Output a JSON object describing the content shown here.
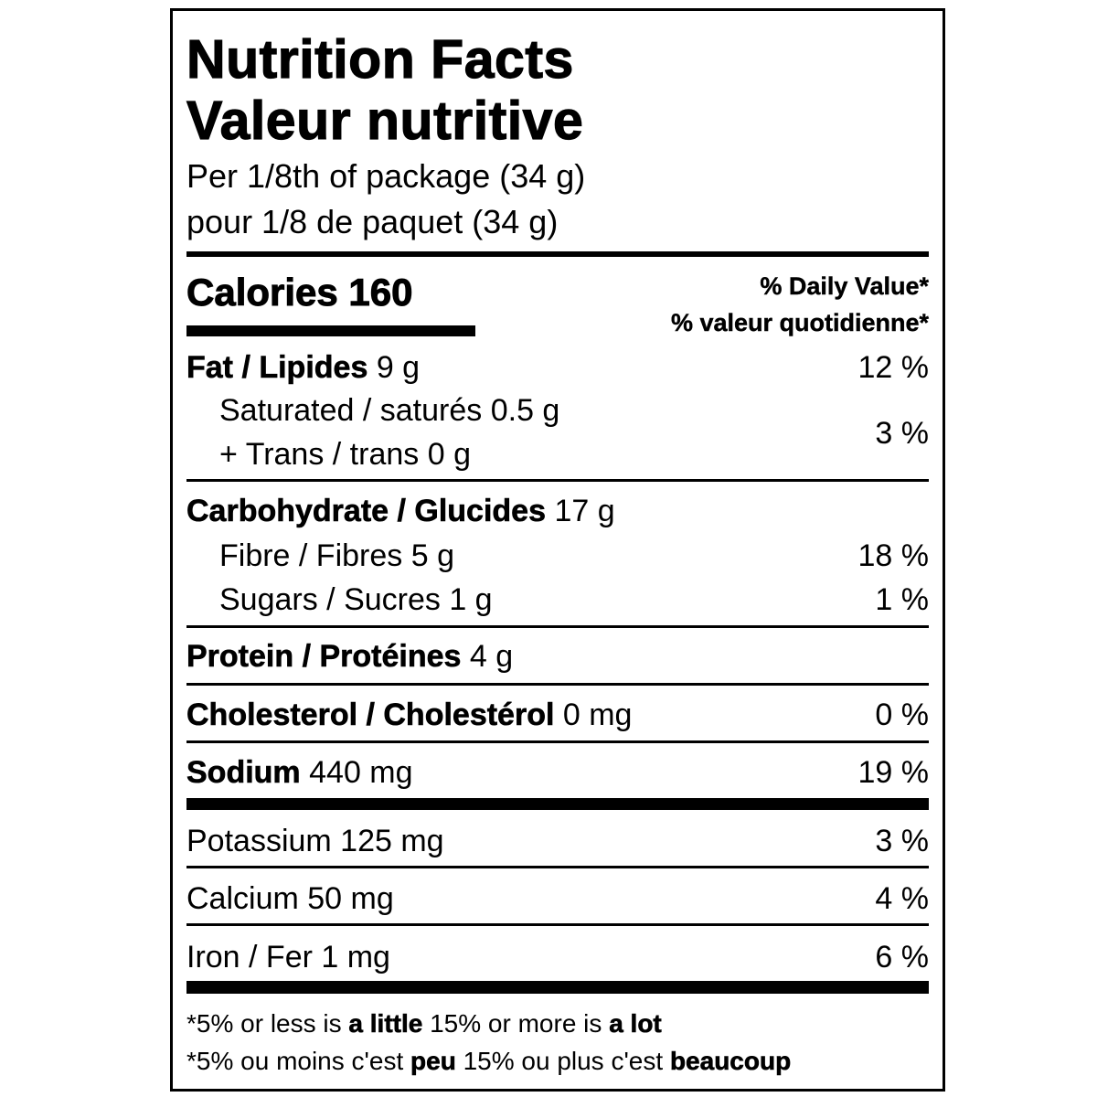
{
  "title_en": "Nutrition Facts",
  "title_fr": "Valeur nutritive",
  "serving_en": "Per 1/8th of package (34 g)",
  "serving_fr": "pour 1/8 de paquet (34 g)",
  "calories_label": "Calories 160",
  "dv_en": "% Daily Value*",
  "dv_fr": "% valeur quotidienne*",
  "nutrients": {
    "fat": {
      "label": "Fat / Lipides",
      "amount": "9 g",
      "dv": "12 %"
    },
    "saturated": {
      "label": "Saturated / saturés 0.5 g"
    },
    "trans": {
      "label": "+ Trans / trans 0 g"
    },
    "sat_trans_dv": "3 %",
    "carb": {
      "label": "Carbohydrate / Glucides",
      "amount": "17 g"
    },
    "fibre": {
      "label": "Fibre / Fibres 5 g",
      "dv": "18 %"
    },
    "sugars": {
      "label": "Sugars / Sucres 1 g",
      "dv": "1 %"
    },
    "protein": {
      "label": "Protein / Protéines",
      "amount": "4 g"
    },
    "cholesterol": {
      "label": "Cholesterol / Cholestérol",
      "amount": "0 mg",
      "dv": "0 %"
    },
    "sodium": {
      "label": "Sodium",
      "amount": "440 mg",
      "dv": "19 %"
    },
    "potassium": {
      "label": "Potassium 125 mg",
      "dv": "3 %"
    },
    "calcium": {
      "label": "Calcium 50 mg",
      "dv": "4 %"
    },
    "iron": {
      "label": "Iron / Fer 1 mg",
      "dv": "6 %"
    }
  },
  "footnote_en": {
    "a": "*5% or less is ",
    "b": "a little",
    "c": " 15% or more is ",
    "d": "a lot"
  },
  "footnote_fr": {
    "a": "*5% ou moins c'est ",
    "b": "peu",
    "c": " 15% ou plus c'est ",
    "d": "beaucoup"
  }
}
